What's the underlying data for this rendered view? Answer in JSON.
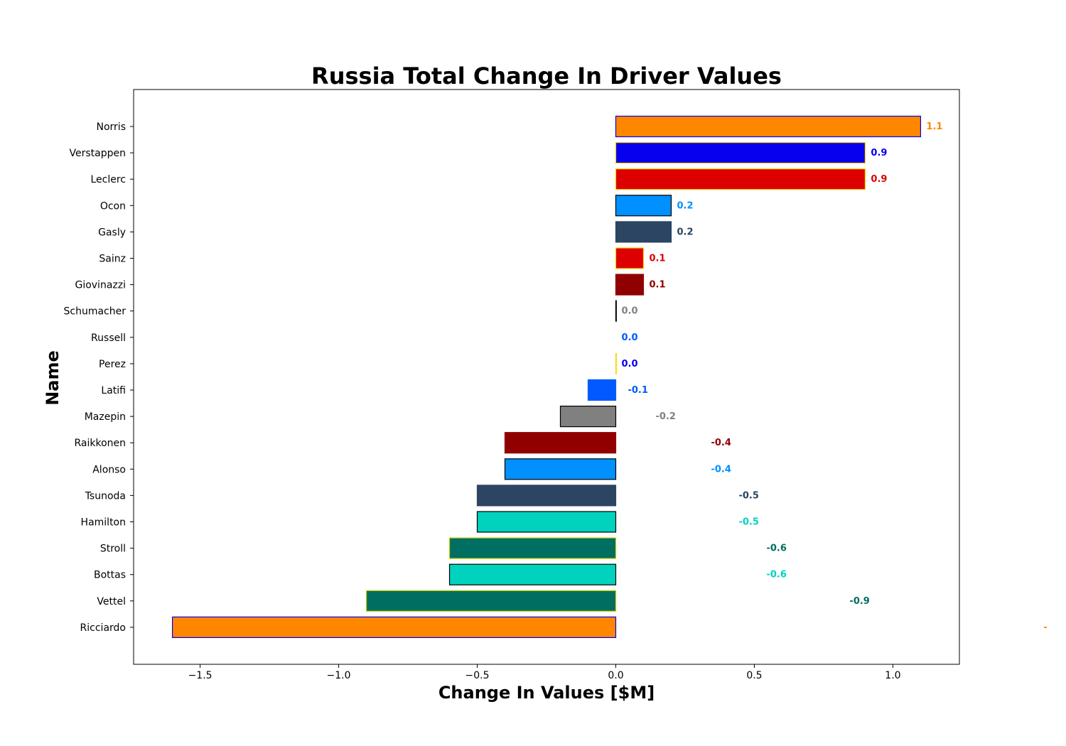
{
  "chart_data": {
    "type": "bar",
    "orientation": "horizontal",
    "title": "Russia Total Change In Driver Values",
    "xlabel": "Change In Values [$M]",
    "ylabel": "Name",
    "xlim": [
      -1.74,
      1.24
    ],
    "xticks": [
      -1.5,
      -1.0,
      -0.5,
      0.0,
      0.5,
      1.0
    ],
    "xtick_labels": [
      "−1.5",
      "−1.0",
      "−0.5",
      "0.0",
      "0.5",
      "1.0"
    ],
    "grid": false,
    "categories": [
      "Norris",
      "Verstappen",
      "Leclerc",
      "Ocon",
      "Gasly",
      "Sainz",
      "Giovinazzi",
      "Schumacher",
      "Russell",
      "Perez",
      "Latifi",
      "Mazepin",
      "Raikkonen",
      "Alonso",
      "Tsunoda",
      "Hamilton",
      "Stroll",
      "Bottas",
      "Vettel",
      "Ricciardo"
    ],
    "values": [
      1.1,
      0.9,
      0.9,
      0.2,
      0.2,
      0.1,
      0.1,
      0.0,
      0.0,
      0.0,
      -0.1,
      -0.2,
      -0.4,
      -0.4,
      -0.5,
      -0.5,
      -0.6,
      -0.6,
      -0.9,
      -1.6
    ],
    "value_labels": [
      "1.1",
      "0.9",
      "0.9",
      "0.2",
      "0.2",
      "0.1",
      "0.1",
      "0.0",
      "0.0",
      "0.0",
      "-0.1",
      "-0.2",
      "-0.4",
      "-0.4",
      "-0.5",
      "-0.5",
      "-0.6",
      "-0.6",
      "-0.9",
      "-"
    ],
    "bar_colors": [
      "#FF8700",
      "#0600EF",
      "#DC0000",
      "#0090FF",
      "#2B4562",
      "#DC0000",
      "#900000",
      "#FFFFFF",
      "#005AFF",
      "#0600EF",
      "#005AFF",
      "#808080",
      "#900000",
      "#0090FF",
      "#2B4562",
      "#00D2BE",
      "#006F62",
      "#00D2BE",
      "#006F62",
      "#FF8700"
    ],
    "edge_colors": [
      "#0600EF",
      "#FFD700",
      "#FFD700",
      "#000000",
      "#2B4562",
      "#FFD700",
      "#900000",
      "#000000",
      "#FFFFFF",
      "#FFD700",
      "#005AFF",
      "#000000",
      "#900000",
      "#000000",
      "#2B4562",
      "#000000",
      "#C8D400",
      "#000000",
      "#C8D400",
      "#0600EF"
    ],
    "label_colors": [
      "#FF8700",
      "#0600EF",
      "#DC0000",
      "#0090FF",
      "#2B4562",
      "#DC0000",
      "#900000",
      "#808080",
      "#005AFF",
      "#0600EF",
      "#005AFF",
      "#808080",
      "#900000",
      "#0090FF",
      "#2B4562",
      "#00D2BE",
      "#006F62",
      "#00D2BE",
      "#006F62",
      "#FF8700"
    ]
  }
}
